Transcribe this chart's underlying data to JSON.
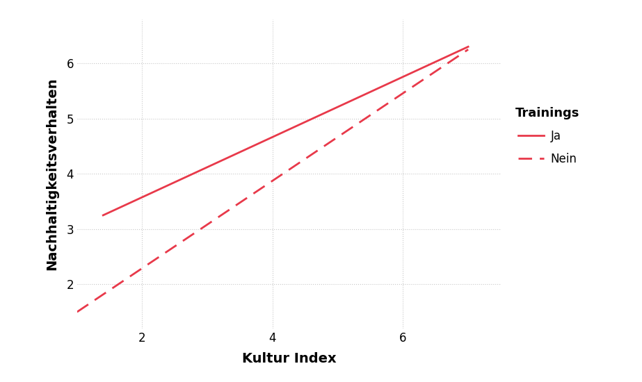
{
  "xlabel": "Kultur Index",
  "ylabel": "Nachhaltigkeitsverhalten",
  "line_ja": {
    "x": [
      1.4,
      7.0
    ],
    "y": [
      3.25,
      6.3
    ],
    "color": "#e8394a",
    "linestyle": "solid",
    "linewidth": 2.0,
    "label": "Ja"
  },
  "line_nein": {
    "x": [
      1.0,
      7.0
    ],
    "y": [
      1.5,
      6.25
    ],
    "color": "#e8394a",
    "linestyle": "dashed",
    "linewidth": 2.0,
    "label": "Nein"
  },
  "legend_title": "Trainings",
  "xlim": [
    1.0,
    7.5
  ],
  "ylim": [
    1.2,
    6.8
  ],
  "xticks": [
    2,
    4,
    6
  ],
  "yticks": [
    2,
    3,
    4,
    5,
    6
  ],
  "background_color": "#ffffff",
  "grid_color": "#c8c8c8",
  "tick_fontsize": 12,
  "label_fontsize": 14,
  "legend_fontsize": 12,
  "legend_title_fontsize": 13
}
